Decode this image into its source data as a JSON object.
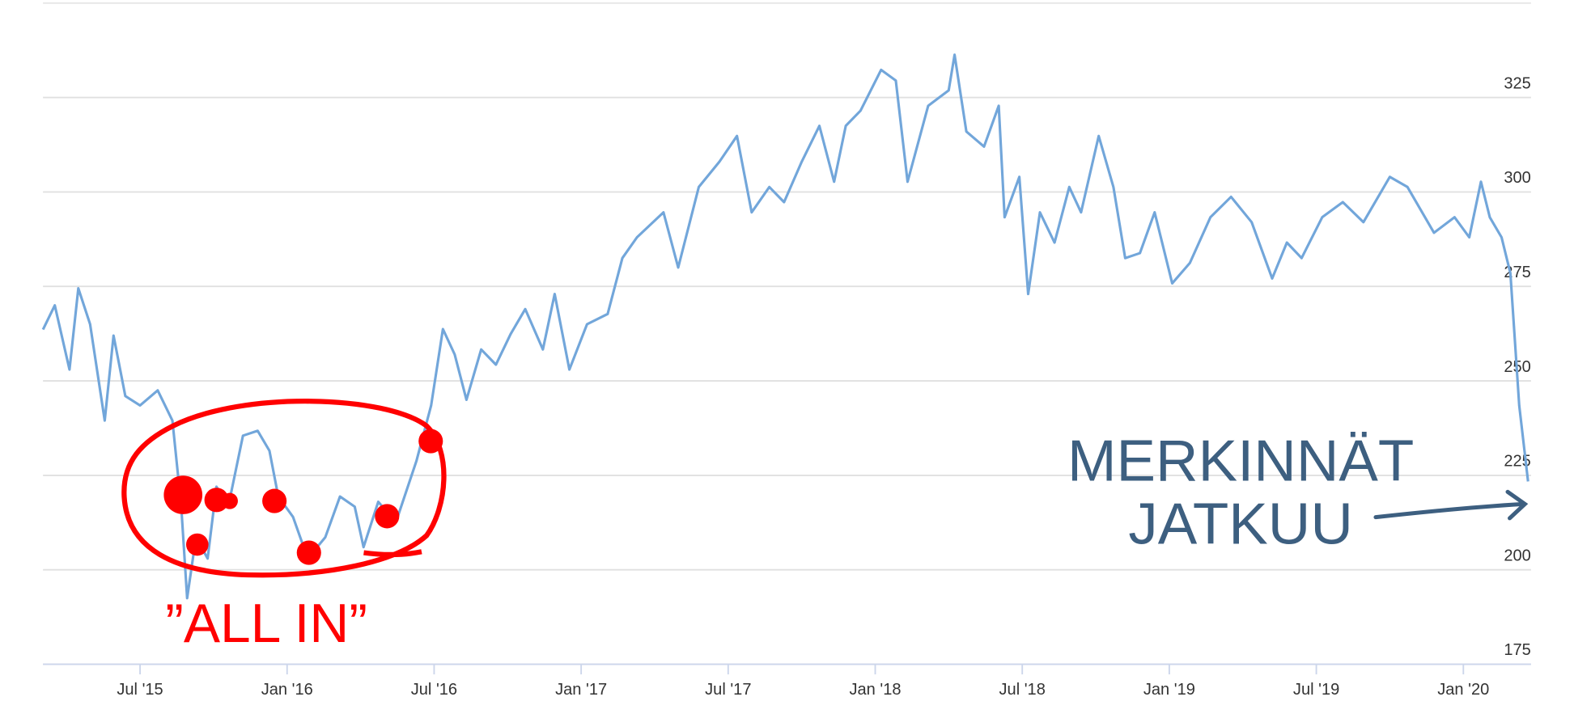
{
  "chart_data": {
    "type": "line",
    "x": [
      2015.17,
      2015.21,
      2015.26,
      2015.29,
      2015.33,
      2015.38,
      2015.41,
      2015.45,
      2015.5,
      2015.56,
      2015.61,
      2015.64,
      2015.66,
      2015.69,
      2015.73,
      2015.76,
      2015.8,
      2015.85,
      2015.9,
      2015.94,
      2015.97,
      2016.02,
      2016.07,
      2016.13,
      2016.18,
      2016.23,
      2016.26,
      2016.31,
      2016.37,
      2016.44,
      2016.49,
      2016.53,
      2016.57,
      2016.61,
      2016.66,
      2016.71,
      2016.76,
      2016.81,
      2016.87,
      2016.91,
      2016.96,
      2017.02,
      2017.09,
      2017.14,
      2017.19,
      2017.28,
      2017.33,
      2017.4,
      2017.47,
      2017.53,
      2017.58,
      2017.64,
      2017.69,
      2017.75,
      2017.81,
      2017.86,
      2017.9,
      2017.95,
      2018.02,
      2018.07,
      2018.11,
      2018.18,
      2018.25,
      2018.27,
      2018.31,
      2018.37,
      2018.42,
      2018.44,
      2018.49,
      2018.52,
      2018.56,
      2018.61,
      2018.66,
      2018.7,
      2018.76,
      2018.81,
      2018.85,
      2018.9,
      2018.95,
      2019.01,
      2019.07,
      2019.14,
      2019.21,
      2019.28,
      2019.35,
      2019.4,
      2019.45,
      2019.52,
      2019.59,
      2019.66,
      2019.75,
      2019.81,
      2019.9,
      2019.97,
      2020.02,
      2020.06,
      2020.09,
      2020.13,
      2020.16,
      2020.19,
      2020.22
    ],
    "series": [
      {
        "color": "#72a6da",
        "values": [
          263.6,
          270,
          253,
          274.5,
          265,
          239.5,
          262,
          246,
          243.5,
          247.5,
          239.5,
          216.7,
          192.5,
          208.6,
          203,
          222,
          216.7,
          235.5,
          236.8,
          231.5,
          219.4,
          214,
          203,
          208.6,
          219.4,
          216.7,
          206,
          218,
          212.6,
          228.8,
          243.5,
          263.7,
          257,
          245,
          258.3,
          254.3,
          262.4,
          269,
          258.3,
          273,
          253,
          265,
          267.7,
          282.5,
          288,
          294.6,
          280,
          301.3,
          308,
          314.8,
          294.6,
          301.3,
          297.3,
          308,
          317.5,
          302.7,
          317.5,
          321.5,
          332.3,
          329.5,
          302.7,
          322.8,
          326.9,
          336.3,
          316,
          312,
          322.8,
          293.3,
          304,
          273,
          294.6,
          286.6,
          301.3,
          294.6,
          314.8,
          301.3,
          282.5,
          283.8,
          294.6,
          275.8,
          281.2,
          293.3,
          298.7,
          292,
          277.1,
          286.6,
          282.5,
          293.3,
          297.3,
          292,
          304,
          301.3,
          289.2,
          293.3,
          288,
          302.7,
          293.3,
          288,
          278.5,
          243.5,
          223.4
        ]
      }
    ],
    "xlim": [
      2015.17,
      2020.23
    ],
    "xticks": [
      {
        "value": 2015.5,
        "label": "Jul '15"
      },
      {
        "value": 2016,
        "label": "Jan '16"
      },
      {
        "value": 2016.5,
        "label": "Jul '16"
      },
      {
        "value": 2017,
        "label": "Jan '17"
      },
      {
        "value": 2017.5,
        "label": "Jul '17"
      },
      {
        "value": 2018,
        "label": "Jan '18"
      },
      {
        "value": 2018.5,
        "label": "Jul '18"
      },
      {
        "value": 2019,
        "label": "Jan '19"
      },
      {
        "value": 2019.5,
        "label": "Jul '19"
      },
      {
        "value": 2020,
        "label": "Jan '20"
      }
    ],
    "ylim": [
      175,
      350
    ],
    "yticks": [
      175,
      200,
      225,
      250,
      275,
      300,
      325
    ],
    "grid": true,
    "annotations": [
      "”ALL IN”",
      "MERKINNÄT",
      "JATKUU"
    ]
  }
}
